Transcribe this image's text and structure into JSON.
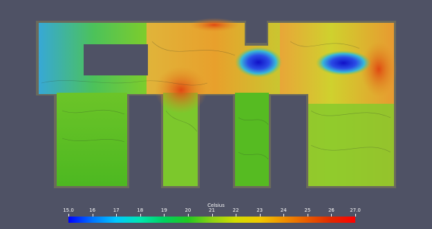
{
  "scene": {
    "background_color": "#4f5265",
    "floor_edge_color": "#6a6a5c",
    "cold_spot_color": "#1717cc"
  },
  "colorbar": {
    "title": "Celsius",
    "range": [
      15.0,
      27.0
    ],
    "tick_labels": [
      "15.0",
      "16",
      "17",
      "18",
      "19",
      "20",
      "21",
      "22",
      "23",
      "24",
      "25",
      "26",
      "27.0"
    ],
    "colors": [
      "#0000ff",
      "#0073ff",
      "#00c8ff",
      "#00e6b0",
      "#00d060",
      "#22c822",
      "#8cd214",
      "#d2dc00",
      "#f0c800",
      "#f09000",
      "#e85a00",
      "#e02800",
      "#ff0000"
    ]
  }
}
